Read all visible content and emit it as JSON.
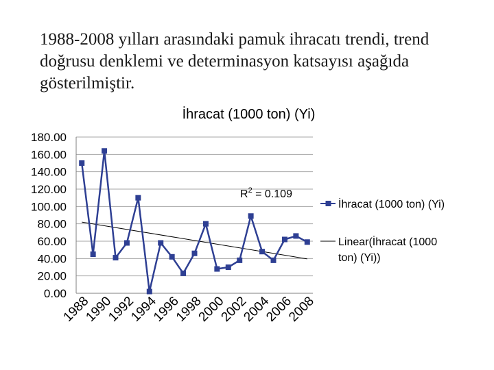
{
  "slide": {
    "intro_lines": [
      "1988-2008 yılları arasındaki pamuk ihracatı trendi, trend",
      "doğrusu denklemi ve determinasyon katsayısı aşağıda",
      "gösterilmiştir."
    ]
  },
  "chart_data": {
    "type": "line",
    "title": "İhracat (1000 ton) (Yi)",
    "x": [
      "1988",
      "1989",
      "1990",
      "1991",
      "1992",
      "1993",
      "1994",
      "1995",
      "1996",
      "1997",
      "1998",
      "1999",
      "2000",
      "2001",
      "2002",
      "2003",
      "2004",
      "2005",
      "2006",
      "2007",
      "2008"
    ],
    "x_tick_labels": [
      "1988",
      "1990",
      "1992",
      "1994",
      "1996",
      "1998",
      "2000",
      "2002",
      "2004",
      "2006",
      "2008"
    ],
    "series": [
      {
        "name": "İhracat (1000 ton) (Yi)",
        "color": "#2e3f93",
        "marker": "square",
        "values": [
          150,
          45,
          164,
          41,
          58,
          110,
          2,
          58,
          42,
          23,
          46,
          80,
          28,
          30,
          38,
          89,
          48,
          38,
          62,
          66,
          59
        ]
      }
    ],
    "trendline": {
      "name": "Linear(İhracat (1000 ton) (Yi))",
      "legend_lines": [
        "Linear(İhracat (1000",
        "ton) (Yi))"
      ],
      "r2_label": "R",
      "r2_sup": "2",
      "r2_value": " = 0.109",
      "color": "#000000"
    },
    "ylim": [
      0,
      180
    ],
    "y_ticks": [
      "0.00",
      "20.00",
      "40.00",
      "60.00",
      "80.00",
      "100.00",
      "120.00",
      "140.00",
      "160.00",
      "180.00"
    ],
    "grid": true,
    "legend_position": "right"
  }
}
